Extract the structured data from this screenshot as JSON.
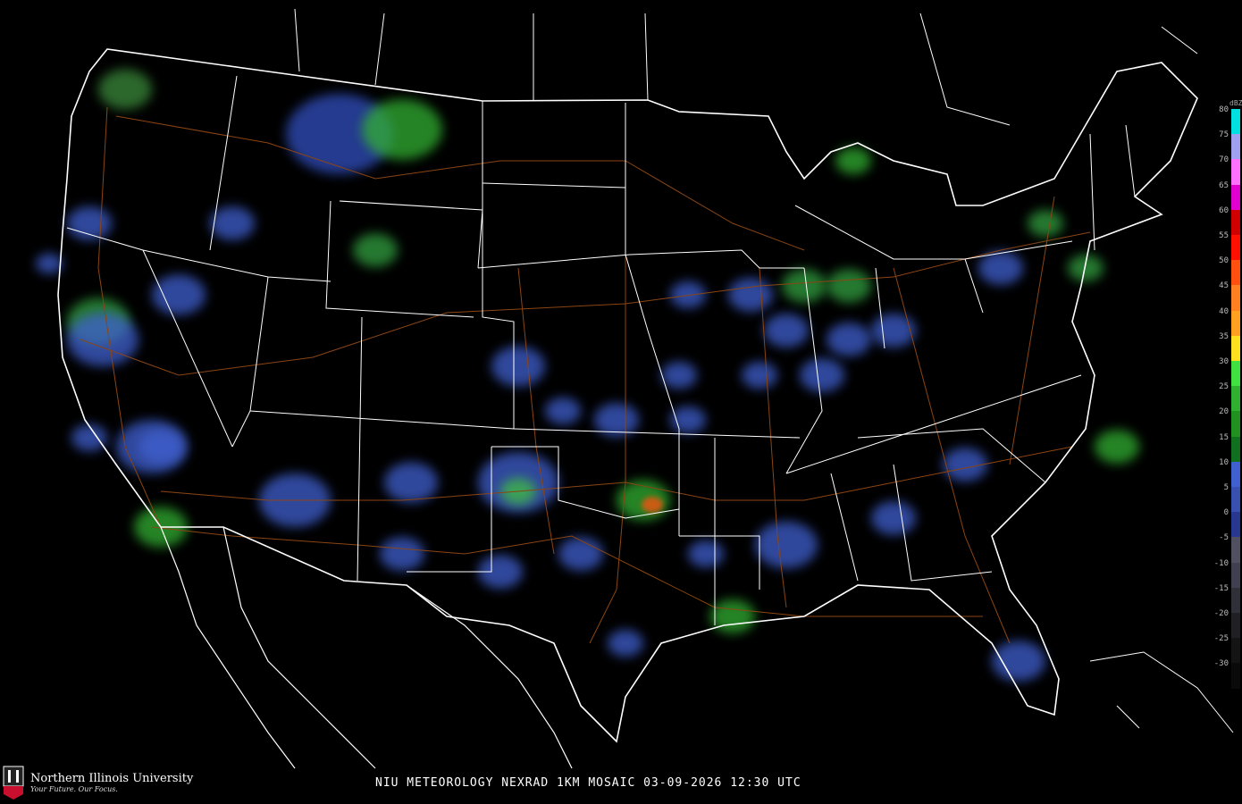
{
  "caption": "NIU METEOROLOGY NEXRAD 1KM MOSAIC  03-09-2026 12:30 UTC",
  "logo": {
    "name": "Northern Illinois University",
    "tagline": "Your Future. Our Focus.",
    "badge": "NIU"
  },
  "legend": {
    "unit": "dBZ",
    "labels": [
      "80",
      "75",
      "70",
      "65",
      "60",
      "55",
      "50",
      "45",
      "40",
      "35",
      "30",
      "25",
      "20",
      "15",
      "10",
      "5",
      "0",
      "-5",
      "-10",
      "-15",
      "-20",
      "-25",
      "-30"
    ],
    "colors": {
      "80": "#00e0e0",
      "75": "#a0a0f0",
      "70": "#ff70ff",
      "65": "#e000d0",
      "60": "#d00000",
      "55": "#ff1000",
      "50": "#ff5010",
      "45": "#ff8020",
      "40": "#ffa020",
      "35": "#ffe020",
      "30": "#40e040",
      "25": "#30b030",
      "20": "#209020",
      "15": "#107020",
      "10": "#4060d0",
      "5": "#3850b0",
      "0": "#283890",
      "-5": "#505060",
      "-10": "#404050",
      "-15": "#303038",
      "-20": "#202024",
      "-25": "#141414",
      "-30": "#0a0a0a"
    }
  },
  "colors": {
    "borders": "#ffffff",
    "highways": "#8b4513",
    "background": "#000000"
  }
}
